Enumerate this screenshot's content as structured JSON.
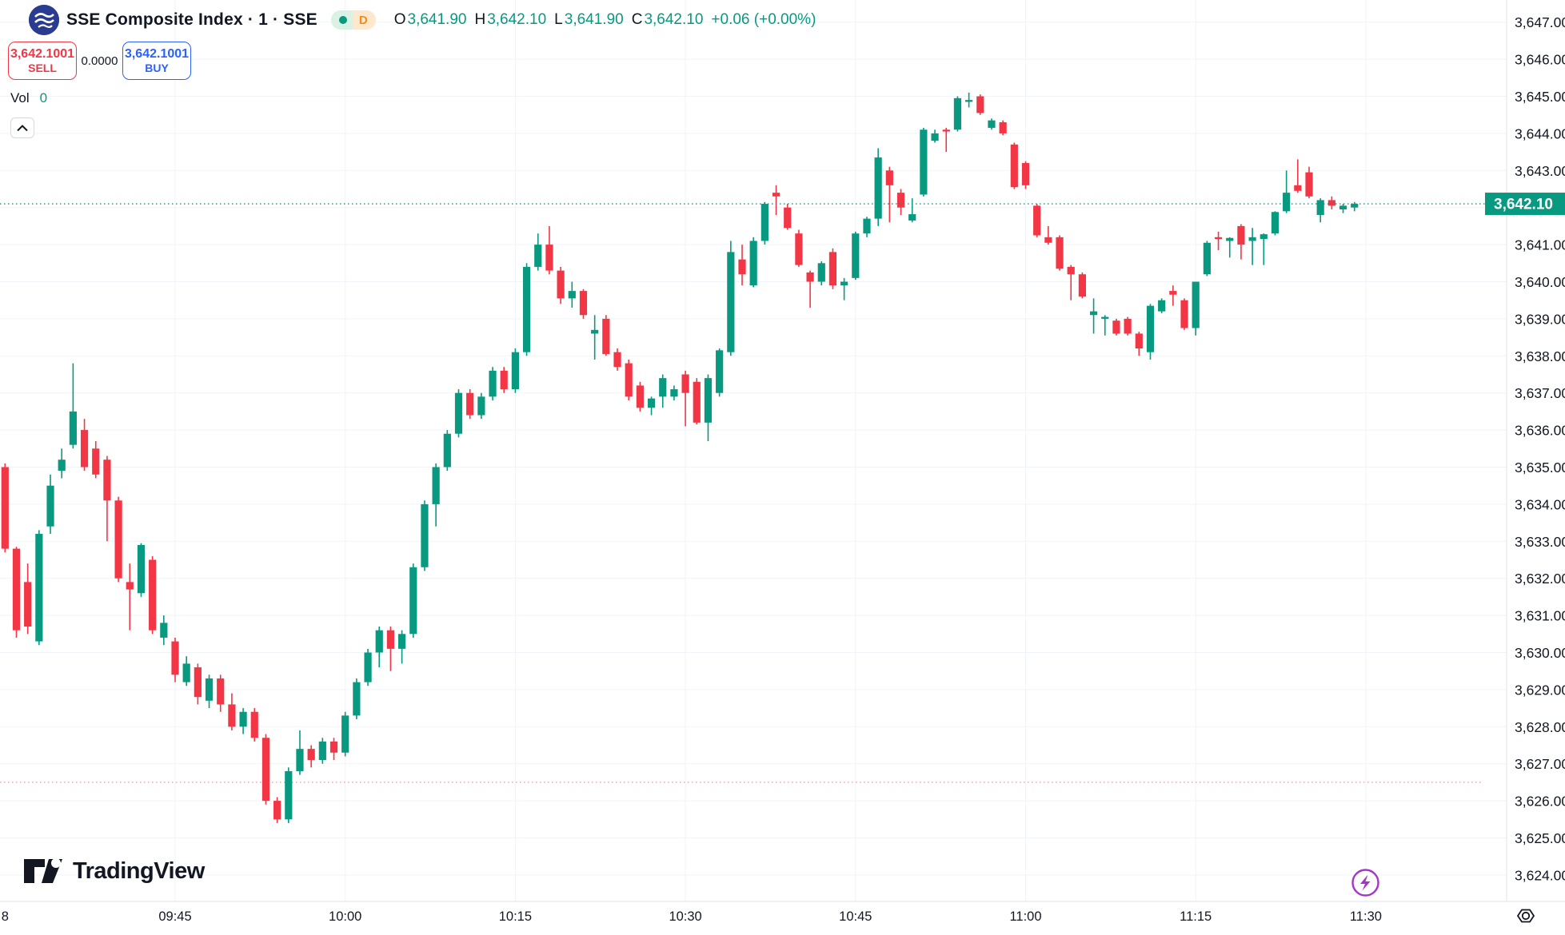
{
  "header": {
    "symbol_title": "SSE Composite Index · 1 · SSE",
    "market_status_icon": "green-dot",
    "interval_badge": "D",
    "ohlc": {
      "o_label": "O",
      "o": "3,641.90",
      "h_label": "H",
      "h": "3,642.10",
      "l_label": "L",
      "l": "3,641.90",
      "c_label": "C",
      "c": "3,642.10",
      "change": "+0.06 (+0.00%)"
    },
    "sell_button": {
      "price": "3,642.1001",
      "label": "SELL"
    },
    "spread": "0.0000",
    "buy_button": {
      "price": "3,642.1001",
      "label": "BUY"
    },
    "vol_label": "Vol",
    "vol_value": "0"
  },
  "footer": {
    "logo_text": "TradingView"
  },
  "colors": {
    "up": "#089981",
    "down": "#f23645",
    "buy_blue": "#2962ff",
    "text": "#131722",
    "grid": "#f0f3fa",
    "axis_border": "#e0e3eb",
    "price_tag_bg": "#089981",
    "lightning_purple": "#a335c8"
  },
  "price_axis": {
    "current_price": "3,642.10",
    "labels": [
      {
        "text": "3,647.00",
        "price": 3647
      },
      {
        "text": "3,646.00",
        "price": 3646
      },
      {
        "text": "3,645.00",
        "price": 3645
      },
      {
        "text": "3,644.00",
        "price": 3644
      },
      {
        "text": "3,643.00",
        "price": 3643
      },
      {
        "text": "3,641.00",
        "price": 3641
      },
      {
        "text": "3,640.00",
        "price": 3640
      },
      {
        "text": "3,639.00",
        "price": 3639
      },
      {
        "text": "3,638.00",
        "price": 3638
      },
      {
        "text": "3,637.00",
        "price": 3637
      },
      {
        "text": "3,636.00",
        "price": 3636
      },
      {
        "text": "3,635.00",
        "price": 3635
      },
      {
        "text": "3,634.00",
        "price": 3634
      },
      {
        "text": "3,633.00",
        "price": 3633
      },
      {
        "text": "3,632.00",
        "price": 3632
      },
      {
        "text": "3,631.00",
        "price": 3631
      },
      {
        "text": "3,630.00",
        "price": 3630
      },
      {
        "text": "3,629.00",
        "price": 3629
      },
      {
        "text": "3,628.00",
        "price": 3628
      },
      {
        "text": "3,627.00",
        "price": 3627
      },
      {
        "text": "3,626.00",
        "price": 3626
      },
      {
        "text": "3,625.00",
        "price": 3625
      },
      {
        "text": "3,624.00",
        "price": 3624
      }
    ]
  },
  "time_axis": {
    "labels": [
      {
        "text": "8",
        "i": 0
      },
      {
        "text": "09:45",
        "i": 15
      },
      {
        "text": "10:00",
        "i": 30
      },
      {
        "text": "10:15",
        "i": 45
      },
      {
        "text": "10:30",
        "i": 60
      },
      {
        "text": "10:45",
        "i": 75
      },
      {
        "text": "11:00",
        "i": 90
      },
      {
        "text": "11:15",
        "i": 105
      },
      {
        "text": "11:30",
        "i": 120
      }
    ]
  },
  "chart_data": {
    "type": "candlestick",
    "title": "SSE Composite Index 1-minute",
    "interval_minutes": 1,
    "start_time": "09:30",
    "end_time": "11:30",
    "ylim": [
      3623.5,
      3647.5
    ],
    "grid": true,
    "current_price_line": 3642.1,
    "red_dotted_line": 3626.5,
    "candles": [
      [
        3635.0,
        3635.1,
        3632.7,
        3632.8
      ],
      [
        3632.8,
        3632.85,
        3630.4,
        3630.6
      ],
      [
        3631.9,
        3632.4,
        3630.5,
        3630.7
      ],
      [
        3630.3,
        3633.3,
        3630.2,
        3633.2
      ],
      [
        3633.4,
        3634.8,
        3633.2,
        3634.5
      ],
      [
        3634.9,
        3635.5,
        3634.7,
        3635.2
      ],
      [
        3635.6,
        3637.8,
        3635.5,
        3636.5
      ],
      [
        3636.0,
        3636.3,
        3634.9,
        3635.0
      ],
      [
        3635.5,
        3635.7,
        3634.7,
        3634.8
      ],
      [
        3635.2,
        3635.3,
        3633.0,
        3634.1
      ],
      [
        3634.1,
        3634.2,
        3631.9,
        3632.0
      ],
      [
        3631.9,
        3632.4,
        3630.6,
        3631.7
      ],
      [
        3631.6,
        3632.95,
        3631.5,
        3632.9
      ],
      [
        3632.5,
        3632.6,
        3630.5,
        3630.6
      ],
      [
        3630.4,
        3631.0,
        3630.2,
        3630.8
      ],
      [
        3630.3,
        3630.4,
        3629.2,
        3629.4
      ],
      [
        3629.2,
        3629.9,
        3629.1,
        3629.7
      ],
      [
        3629.6,
        3629.7,
        3628.6,
        3628.8
      ],
      [
        3628.7,
        3629.4,
        3628.5,
        3629.3
      ],
      [
        3629.3,
        3629.4,
        3628.4,
        3628.6
      ],
      [
        3628.6,
        3628.9,
        3627.9,
        3628.0
      ],
      [
        3628.0,
        3628.5,
        3627.8,
        3628.4
      ],
      [
        3628.4,
        3628.5,
        3627.6,
        3627.7
      ],
      [
        3627.7,
        3627.8,
        3625.9,
        3626.0
      ],
      [
        3626.0,
        3626.1,
        3625.4,
        3625.5
      ],
      [
        3625.5,
        3626.9,
        3625.4,
        3626.8
      ],
      [
        3626.8,
        3627.9,
        3626.7,
        3627.4
      ],
      [
        3627.4,
        3627.5,
        3626.9,
        3627.1
      ],
      [
        3627.1,
        3627.7,
        3627.0,
        3627.6
      ],
      [
        3627.6,
        3627.7,
        3627.1,
        3627.3
      ],
      [
        3627.3,
        3628.4,
        3627.2,
        3628.3
      ],
      [
        3628.3,
        3629.3,
        3628.2,
        3629.2
      ],
      [
        3629.2,
        3630.1,
        3629.1,
        3630.0
      ],
      [
        3630.0,
        3630.7,
        3629.6,
        3630.6
      ],
      [
        3630.6,
        3630.7,
        3629.5,
        3630.1
      ],
      [
        3630.1,
        3630.6,
        3629.7,
        3630.5
      ],
      [
        3630.5,
        3632.4,
        3630.4,
        3632.3
      ],
      [
        3632.3,
        3634.1,
        3632.2,
        3634.0
      ],
      [
        3634.0,
        3635.1,
        3633.4,
        3635.0
      ],
      [
        3635.0,
        3636.0,
        3634.9,
        3635.9
      ],
      [
        3635.9,
        3637.1,
        3635.8,
        3637.0
      ],
      [
        3637.0,
        3637.1,
        3636.3,
        3636.4
      ],
      [
        3636.4,
        3637.0,
        3636.3,
        3636.9
      ],
      [
        3636.9,
        3637.7,
        3636.8,
        3637.6
      ],
      [
        3637.6,
        3637.7,
        3637.0,
        3637.1
      ],
      [
        3637.1,
        3638.2,
        3637.0,
        3638.1
      ],
      [
        3638.1,
        3640.5,
        3638.0,
        3640.4
      ],
      [
        3640.4,
        3641.3,
        3640.3,
        3641.0
      ],
      [
        3641.0,
        3641.5,
        3640.2,
        3640.3
      ],
      [
        3640.3,
        3640.4,
        3639.4,
        3639.55
      ],
      [
        3639.55,
        3640.0,
        3639.3,
        3639.75
      ],
      [
        3639.75,
        3639.8,
        3639.0,
        3639.1
      ],
      [
        3638.6,
        3639.1,
        3637.9,
        3638.7
      ],
      [
        3639.0,
        3639.1,
        3638.0,
        3638.05
      ],
      [
        3638.1,
        3638.2,
        3637.6,
        3637.7
      ],
      [
        3637.8,
        3637.9,
        3636.8,
        3636.9
      ],
      [
        3637.2,
        3637.3,
        3636.5,
        3636.6
      ],
      [
        3636.6,
        3636.9,
        3636.4,
        3636.85
      ],
      [
        3636.9,
        3637.5,
        3636.6,
        3637.4
      ],
      [
        3636.9,
        3637.2,
        3636.8,
        3637.1
      ],
      [
        3637.5,
        3637.6,
        3636.1,
        3637.0
      ],
      [
        3637.3,
        3637.4,
        3636.15,
        3636.2
      ],
      [
        3636.2,
        3637.5,
        3635.7,
        3637.4
      ],
      [
        3637.0,
        3638.2,
        3636.9,
        3638.15
      ],
      [
        3638.1,
        3641.1,
        3638.0,
        3640.8
      ],
      [
        3640.6,
        3641.0,
        3639.9,
        3640.2
      ],
      [
        3639.9,
        3641.2,
        3639.85,
        3641.1
      ],
      [
        3641.1,
        3642.15,
        3641.0,
        3642.1
      ],
      [
        3642.4,
        3642.6,
        3641.8,
        3642.3
      ],
      [
        3642.0,
        3642.1,
        3641.4,
        3641.45
      ],
      [
        3641.3,
        3641.4,
        3640.4,
        3640.45
      ],
      [
        3640.25,
        3640.3,
        3639.3,
        3640.0
      ],
      [
        3640.0,
        3640.55,
        3639.9,
        3640.5
      ],
      [
        3640.8,
        3640.9,
        3639.8,
        3639.9
      ],
      [
        3639.9,
        3640.1,
        3639.5,
        3640.0
      ],
      [
        3640.1,
        3641.35,
        3640.05,
        3641.3
      ],
      [
        3641.3,
        3641.75,
        3641.2,
        3641.7
      ],
      [
        3641.7,
        3643.6,
        3641.5,
        3643.35
      ],
      [
        3643.0,
        3643.1,
        3641.6,
        3642.6
      ],
      [
        3642.4,
        3642.5,
        3641.8,
        3642.0
      ],
      [
        3641.65,
        3642.25,
        3641.6,
        3641.82
      ],
      [
        3642.35,
        3644.15,
        3642.3,
        3644.1
      ],
      [
        3643.8,
        3644.1,
        3643.75,
        3644.0
      ],
      [
        3644.1,
        3644.15,
        3643.5,
        3644.05
      ],
      [
        3644.1,
        3645.0,
        3644.05,
        3644.95
      ],
      [
        3644.85,
        3645.1,
        3644.7,
        3644.9
      ],
      [
        3645.0,
        3645.05,
        3644.5,
        3644.55
      ],
      [
        3644.15,
        3644.4,
        3644.1,
        3644.35
      ],
      [
        3644.3,
        3644.35,
        3643.95,
        3644.0
      ],
      [
        3643.7,
        3643.75,
        3642.5,
        3642.55
      ],
      [
        3643.2,
        3643.25,
        3642.5,
        3642.6
      ],
      [
        3642.05,
        3642.1,
        3641.2,
        3641.25
      ],
      [
        3641.2,
        3641.5,
        3641.0,
        3641.05
      ],
      [
        3641.2,
        3641.25,
        3640.3,
        3640.35
      ],
      [
        3640.4,
        3640.45,
        3639.5,
        3640.2
      ],
      [
        3640.2,
        3640.25,
        3639.55,
        3639.6
      ],
      [
        3639.1,
        3639.55,
        3638.6,
        3639.2
      ],
      [
        3639.0,
        3639.1,
        3638.55,
        3639.05
      ],
      [
        3638.95,
        3639.0,
        3638.55,
        3638.6
      ],
      [
        3639.0,
        3639.05,
        3638.55,
        3638.6
      ],
      [
        3638.6,
        3638.65,
        3638.0,
        3638.2
      ],
      [
        3638.1,
        3639.4,
        3637.9,
        3639.35
      ],
      [
        3639.2,
        3639.55,
        3639.15,
        3639.5
      ],
      [
        3639.75,
        3639.9,
        3639.35,
        3639.65
      ],
      [
        3639.5,
        3639.55,
        3638.7,
        3638.75
      ],
      [
        3638.75,
        3640.0,
        3638.55,
        3640.0
      ],
      [
        3640.2,
        3641.1,
        3640.15,
        3641.05
      ],
      [
        3641.2,
        3641.35,
        3640.85,
        3641.15
      ],
      [
        3641.1,
        3641.2,
        3640.65,
        3641.18
      ],
      [
        3641.5,
        3641.55,
        3640.6,
        3641.0
      ],
      [
        3641.1,
        3641.45,
        3640.45,
        3641.2
      ],
      [
        3641.15,
        3641.3,
        3640.45,
        3641.28
      ],
      [
        3641.3,
        3641.9,
        3641.25,
        3641.88
      ],
      [
        3641.9,
        3643.0,
        3641.85,
        3642.4
      ],
      [
        3642.6,
        3643.3,
        3642.4,
        3642.45
      ],
      [
        3642.95,
        3643.1,
        3642.25,
        3642.3
      ],
      [
        3641.8,
        3642.25,
        3641.6,
        3642.2
      ],
      [
        3642.2,
        3642.3,
        3641.95,
        3642.05
      ],
      [
        3641.95,
        3642.1,
        3641.85,
        3642.05
      ],
      [
        3642.0,
        3642.15,
        3641.9,
        3642.1
      ]
    ]
  }
}
